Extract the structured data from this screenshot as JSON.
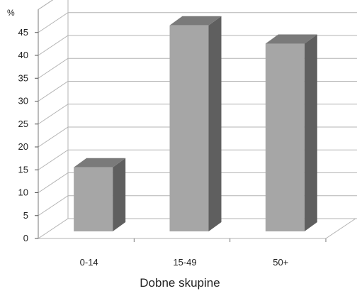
{
  "chart_data": {
    "type": "bar",
    "style": "3d-column",
    "categories": [
      "0-14",
      "15-49",
      "50+"
    ],
    "values": [
      14,
      45,
      41
    ],
    "title": "",
    "xlabel": "Dobne skupine",
    "ylabel": "%",
    "ylim": [
      0,
      50
    ],
    "yticks": [
      0,
      5,
      10,
      15,
      20,
      25,
      30,
      35,
      40,
      45
    ],
    "grid": true,
    "legend": "none",
    "colors": {
      "bar_front": "#a6a6a6",
      "bar_side": "#5f5f5f",
      "bar_top": "#7a7a7a",
      "grid": "#b3b3b3",
      "text": "#222222"
    }
  }
}
